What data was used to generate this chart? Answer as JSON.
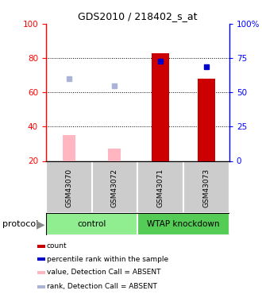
{
  "title": "GDS2010 / 218402_s_at",
  "samples": [
    "GSM43070",
    "GSM43072",
    "GSM43071",
    "GSM43073"
  ],
  "bar_values_absent": [
    35,
    27,
    0,
    0
  ],
  "bar_values_present": [
    0,
    0,
    83,
    68
  ],
  "blue_squares_absent": [
    68,
    64,
    0,
    0
  ],
  "blue_squares_present": [
    0,
    0,
    78,
    75
  ],
  "ylim_left": [
    20,
    100
  ],
  "yticks_left": [
    20,
    40,
    60,
    80,
    100
  ],
  "ytick_labels_right": [
    "0",
    "25",
    "50",
    "75",
    "100%"
  ],
  "color_bar_absent": "#ffb6c1",
  "color_bar_present": "#cc0000",
  "color_square_absent": "#aab4d8",
  "color_square_present": "#0000cc",
  "color_group_control": "#90ee90",
  "color_group_knockdown": "#55cc55",
  "color_xticklabel_bg": "#cccccc",
  "group_labels": [
    "control",
    "WTAP knockdown"
  ],
  "legend_items": [
    {
      "color": "#cc0000",
      "label": "count"
    },
    {
      "color": "#0000cc",
      "label": "percentile rank within the sample"
    },
    {
      "color": "#ffb6c1",
      "label": "value, Detection Call = ABSENT"
    },
    {
      "color": "#aab4d8",
      "label": "rank, Detection Call = ABSENT"
    }
  ],
  "protocol_label": "protocol"
}
